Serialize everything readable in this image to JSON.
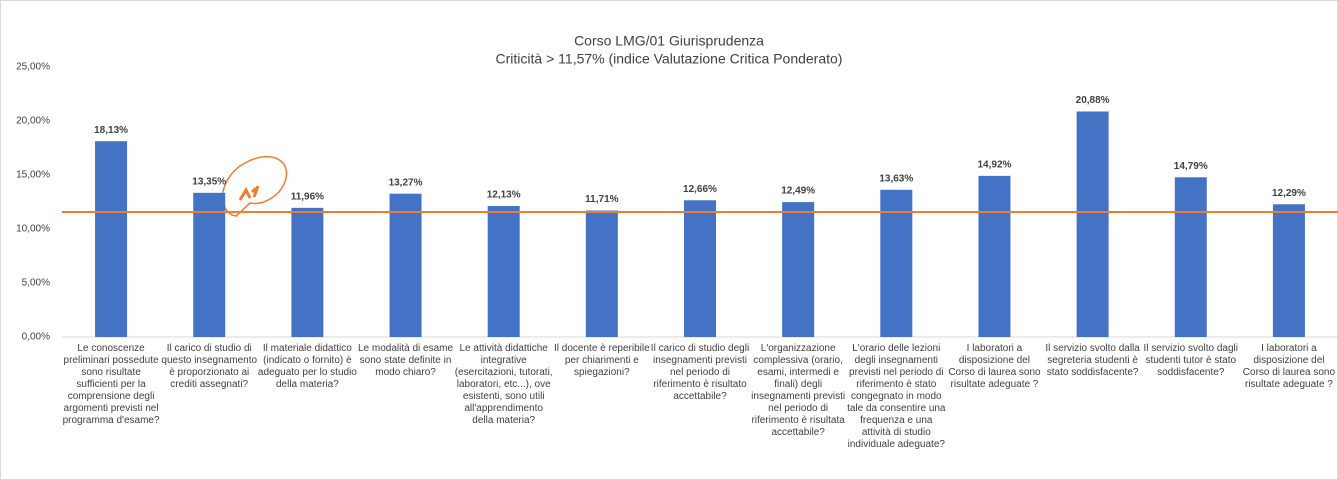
{
  "chart_data": {
    "type": "bar",
    "title": "Corso LMG/01 Giurisprudenza",
    "subtitle": "Criticità > 11,57% (indice Valutazione Critica Ponderato)",
    "categories": [
      "Le conoscenze preliminari possedute sono risultate sufficienti per la comprensione degli argomenti previsti nel programma d'esame?",
      "Il carico di studio di questo insegnamento è proporzionato ai crediti assegnati?",
      "Il materiale didattico (indicato o fornito) è adeguato per lo studio della materia?",
      "Le modalità di esame sono state definite in modo chiaro?",
      "Le attività didattiche integrative (esercitazioni, tutorati, laboratori, etc...), ove esistenti, sono utili all'apprendimento della materia?",
      "Il docente è reperibile per chiarimenti e spiegazioni?",
      "Il carico di studio degli insegnamenti previsti nel periodo di riferimento è risultato accettabile?",
      "L'organizzazione complessiva (orario, esami, intermedi e finali) degli insegnamenti previsti nel periodo di riferimento è risultata accettabile?",
      "L'orario delle lezioni degli insegnamenti previsti nel periodo di riferimento è stato congegnato in modo tale da consentire una frequenza e una attività di studio individuale adeguate?",
      "I laboratori a disposizione del Corso di laurea sono risultate adeguate ?",
      "Il servizio svolto dalla segreteria studenti è stato soddisfacente?",
      "Il servizio svolto dagli studenti tutor è stato soddisfacente?",
      "I laboratori a disposizione del Corso di laurea sono risultate adeguate ?"
    ],
    "values": [
      18.13,
      13.35,
      11.96,
      13.27,
      12.13,
      11.71,
      12.66,
      12.49,
      13.63,
      14.92,
      20.88,
      14.79,
      12.29
    ],
    "value_labels": [
      "18,13%",
      "13,35%",
      "11,96%",
      "13,27%",
      "12,13%",
      "11,71%",
      "12,66%",
      "12,49%",
      "13,63%",
      "14,92%",
      "20,88%",
      "14,79%",
      "12,29%"
    ],
    "color": "#4472c4",
    "reference_line": 11.57,
    "reference_color": "#ed7d31",
    "ylim": [
      0,
      25
    ],
    "yticks": [
      {
        "value": 0,
        "label": "0,00%"
      },
      {
        "value": 5,
        "label": "5,00%"
      },
      {
        "value": 10,
        "label": "10,00%"
      },
      {
        "value": 15,
        "label": "15,00%"
      },
      {
        "value": 20,
        "label": "20,00%"
      },
      {
        "value": 25,
        "label": "25,00%"
      }
    ],
    "grid": false
  }
}
